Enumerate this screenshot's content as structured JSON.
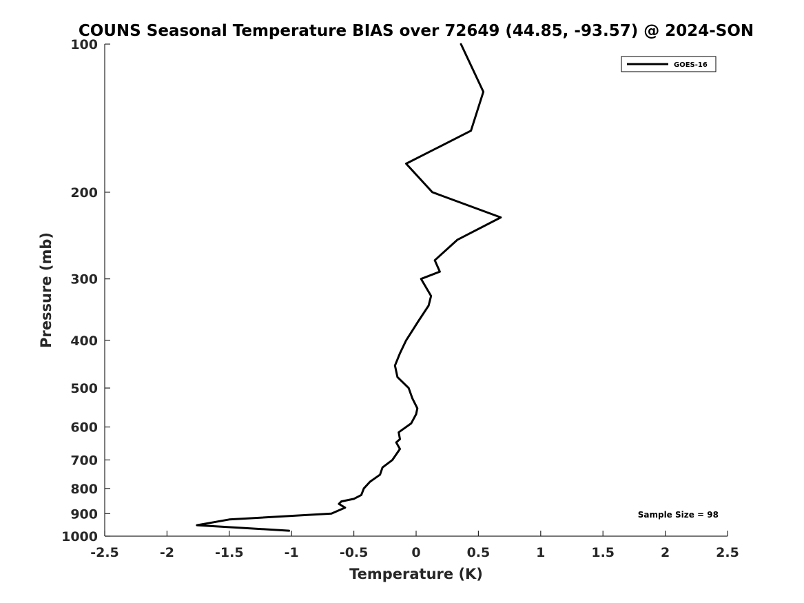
{
  "chart_data": {
    "type": "line",
    "title": "COUNS Seasonal Temperature BIAS over 72649 (44.85, -93.57) @ 2024-SON",
    "xlabel": "Temperature (K)",
    "ylabel": "Pressure (mb)",
    "xlim": [
      -2.5,
      2.5
    ],
    "ylim": [
      1000,
      100
    ],
    "yscale": "log",
    "x_ticks": [
      -2.5,
      -2,
      -1.5,
      -1,
      -0.5,
      0,
      0.5,
      1,
      1.5,
      2,
      2.5
    ],
    "x_tick_labels": [
      "-2.5",
      "-2",
      "-1.5",
      "-1",
      "-0.5",
      "0",
      "0.5",
      "1",
      "1.5",
      "2",
      "2.5"
    ],
    "y_ticks": [
      100,
      200,
      300,
      400,
      500,
      600,
      700,
      800,
      900,
      1000
    ],
    "y_tick_labels": [
      "100",
      "200",
      "300",
      "400",
      "500",
      "600",
      "700",
      "800",
      "900",
      "1000"
    ],
    "grid": false,
    "legend_position": "top-right",
    "annotation": "Sample Size = 98",
    "series": [
      {
        "name": "GOES-16",
        "color": "#000000",
        "points": [
          {
            "x": 0.36,
            "p": 100
          },
          {
            "x": 0.54,
            "p": 125
          },
          {
            "x": 0.44,
            "p": 150
          },
          {
            "x": -0.08,
            "p": 175
          },
          {
            "x": 0.13,
            "p": 200
          },
          {
            "x": 0.68,
            "p": 225
          },
          {
            "x": 0.33,
            "p": 250
          },
          {
            "x": 0.15,
            "p": 275
          },
          {
            "x": 0.19,
            "p": 290
          },
          {
            "x": 0.04,
            "p": 300
          },
          {
            "x": 0.12,
            "p": 325
          },
          {
            "x": 0.1,
            "p": 340
          },
          {
            "x": 0.02,
            "p": 365
          },
          {
            "x": -0.08,
            "p": 400
          },
          {
            "x": -0.13,
            "p": 425
          },
          {
            "x": -0.17,
            "p": 450
          },
          {
            "x": -0.15,
            "p": 475
          },
          {
            "x": -0.06,
            "p": 500
          },
          {
            "x": -0.03,
            "p": 525
          },
          {
            "x": 0.01,
            "p": 550
          },
          {
            "x": 0.0,
            "p": 565
          },
          {
            "x": -0.04,
            "p": 590
          },
          {
            "x": -0.14,
            "p": 615
          },
          {
            "x": -0.13,
            "p": 635
          },
          {
            "x": -0.16,
            "p": 645
          },
          {
            "x": -0.13,
            "p": 665
          },
          {
            "x": -0.19,
            "p": 700
          },
          {
            "x": -0.27,
            "p": 725
          },
          {
            "x": -0.29,
            "p": 750
          },
          {
            "x": -0.37,
            "p": 775
          },
          {
            "x": -0.42,
            "p": 800
          },
          {
            "x": -0.44,
            "p": 825
          },
          {
            "x": -0.5,
            "p": 840
          },
          {
            "x": -0.6,
            "p": 850
          },
          {
            "x": -0.62,
            "p": 860
          },
          {
            "x": -0.57,
            "p": 875
          },
          {
            "x": -0.68,
            "p": 900
          },
          {
            "x": -1.5,
            "p": 925
          },
          {
            "x": -1.76,
            "p": 950
          },
          {
            "x": -1.02,
            "p": 975
          }
        ]
      }
    ]
  }
}
